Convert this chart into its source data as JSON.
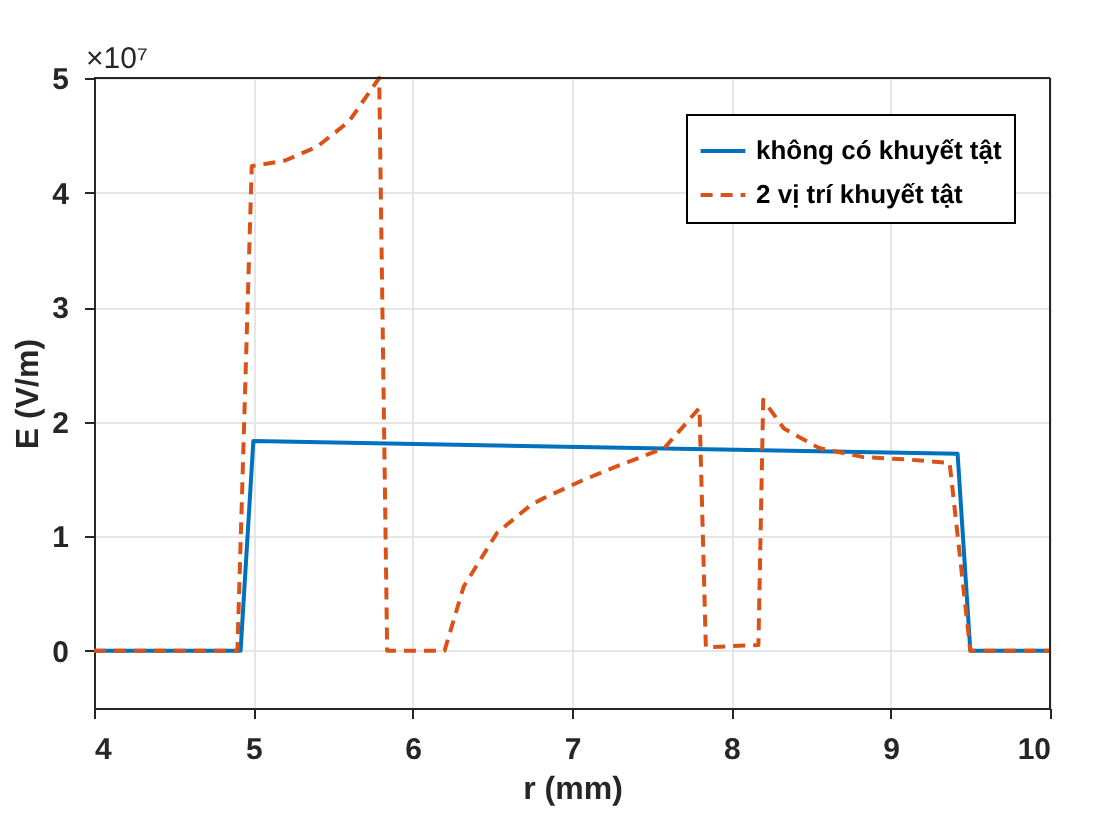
{
  "chart_data": {
    "type": "line",
    "xlabel": "r (mm)",
    "ylabel": "E (V/m)",
    "annotations": [
      "×10⁷"
    ],
    "xlim": [
      4,
      10
    ],
    "xticks": [
      4,
      5,
      6,
      7,
      8,
      9,
      10
    ],
    "ylim": [
      -0.5,
      5
    ],
    "yticks": [
      0,
      1,
      2,
      3,
      4,
      5
    ],
    "grid": true,
    "legend": "top right",
    "series": [
      {
        "name": "không có khuyết tật",
        "color": "#0072bd",
        "line_style": "solid",
        "x": [
          4,
          4.92,
          5.0,
          9.42,
          9.5,
          10
        ],
        "values": [
          0,
          0,
          1.83,
          1.72,
          0,
          0
        ]
      },
      {
        "name": "2 vị trí khuyết tật",
        "color": "#d95319",
        "line_style": "dashed",
        "x": [
          4,
          4.9,
          4.99,
          5.2,
          5.4,
          5.6,
          5.79,
          5.82,
          5.84,
          6.2,
          6.32,
          6.53,
          6.74,
          6.82,
          7.07,
          7.3,
          7.58,
          7.8,
          7.84,
          8.17,
          8.2,
          8.33,
          8.55,
          8.83,
          9.1,
          9.37,
          9.5,
          10
        ],
        "values": [
          0,
          0,
          4.23,
          4.28,
          4.4,
          4.62,
          5.0,
          2.0,
          0,
          0,
          0.56,
          1.03,
          1.27,
          1.33,
          1.49,
          1.62,
          1.77,
          2.12,
          0.03,
          0.05,
          2.19,
          1.94,
          1.77,
          1.69,
          1.67,
          1.64,
          0,
          0
        ]
      }
    ]
  }
}
